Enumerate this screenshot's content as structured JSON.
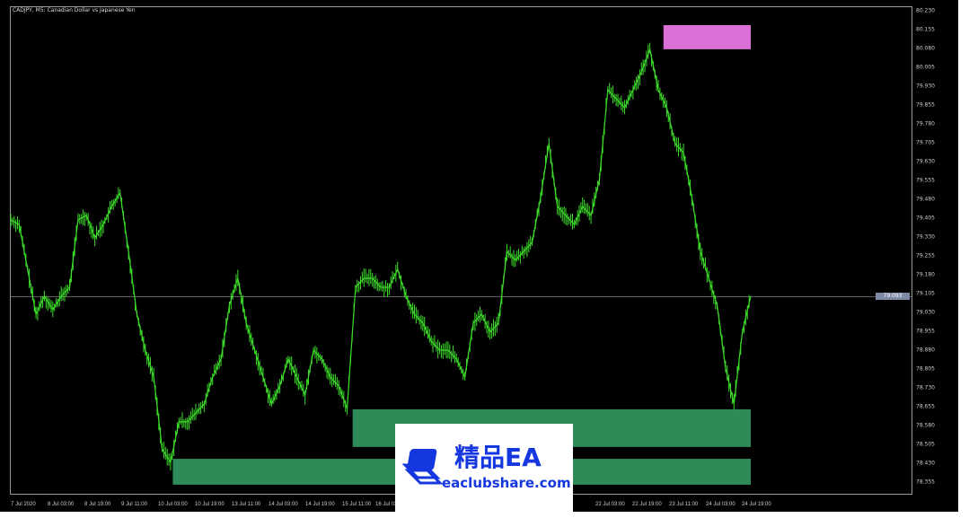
{
  "chart_header": {
    "title": "CADJPY, M5:  Canadian Dollar vs Japanese Yen"
  },
  "colors": {
    "background": "#000000",
    "candles": "#3ddc2a",
    "supply_zone": "#da70d6",
    "demand_zone": "#2e8b57",
    "price_line": "#9a9a9a"
  },
  "y_axis": {
    "ticks": [
      "80.230",
      "80.155",
      "80.080",
      "80.005",
      "79.930",
      "79.855",
      "79.780",
      "79.705",
      "79.630",
      "79.555",
      "79.480",
      "79.405",
      "79.330",
      "79.255",
      "79.180",
      "79.105",
      "79.030",
      "78.955",
      "78.880",
      "78.805",
      "78.730",
      "78.655",
      "78.580",
      "78.505",
      "78.430",
      "78.355"
    ],
    "current_price": "79.093"
  },
  "x_axis": {
    "ticks": [
      "7 Jul 2020",
      "8 Jul 03:00",
      "8 Jul 19:00",
      "9 Jul 11:00",
      "10 Jul 03:00",
      "10 Jul 19:00",
      "13 Jul 11:00",
      "14 Jul 03:00",
      "14 Jul 19:00",
      "15 Jul 11:00",
      "16 Jul 03:00",
      "22 Jul 03:00",
      "22 Jul 19:00",
      "23 Jul 11:00",
      "24 Jul 03:00",
      "24 Jul 19:00"
    ]
  },
  "chart_data": {
    "type": "line",
    "ylim": [
      78.3,
      80.27
    ],
    "close": [
      79.398,
      79.38,
      79.202,
      79.023,
      79.095,
      79.041,
      79.095,
      79.13,
      79.398,
      79.416,
      79.327,
      79.38,
      79.452,
      79.505,
      79.273,
      79.023,
      78.88,
      78.773,
      78.487,
      78.434,
      78.595,
      78.595,
      78.63,
      78.666,
      78.773,
      78.845,
      79.059,
      79.166,
      78.988,
      78.88,
      78.773,
      78.666,
      78.738,
      78.845,
      78.773,
      78.702,
      78.88,
      78.845,
      78.773,
      78.738,
      78.648,
      79.13,
      79.166,
      79.166,
      79.13,
      79.13,
      79.202,
      79.095,
      79.023,
      78.988,
      78.916,
      78.88,
      78.88,
      78.845,
      78.773,
      78.988,
      79.023,
      78.952,
      78.988,
      79.273,
      79.238,
      79.273,
      79.309,
      79.487,
      79.702,
      79.452,
      79.416,
      79.38,
      79.452,
      79.416,
      79.559,
      79.916,
      79.88,
      79.845,
      79.916,
      79.987,
      80.077,
      79.916,
      79.845,
      79.702,
      79.666,
      79.487,
      79.273,
      79.166,
      79.059,
      78.809,
      78.666,
      78.952,
      79.095
    ],
    "zones": [
      {
        "kind": "supply",
        "top": 80.173,
        "bottom": 80.077,
        "start_fraction": 0.882
      },
      {
        "kind": "demand",
        "top": 78.645,
        "bottom": 78.495,
        "start_fraction": 0.462
      },
      {
        "kind": "demand",
        "top": 78.448,
        "bottom": 78.345,
        "start_fraction": 0.219
      }
    ]
  },
  "watermark": {
    "title": "精品EA",
    "url": "eaclubshare.com"
  }
}
